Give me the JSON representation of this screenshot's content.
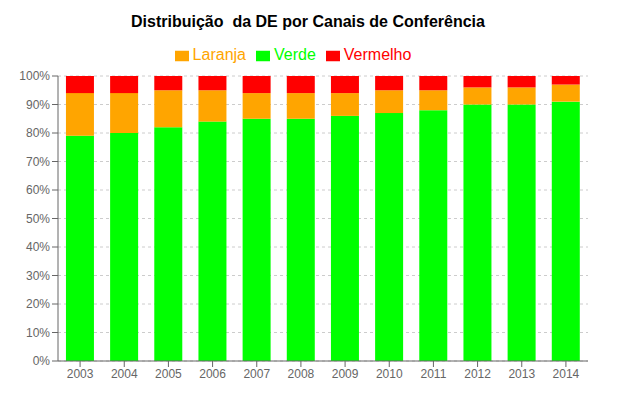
{
  "chart_data": {
    "type": "bar",
    "title": "Distribuição  da DE por Canais de Conferência",
    "categories": [
      "2003",
      "2004",
      "2005",
      "2006",
      "2007",
      "2008",
      "2009",
      "2010",
      "2011",
      "2012",
      "2013",
      "2014"
    ],
    "series": [
      {
        "name": "Verde",
        "color": "#00FF00",
        "values": [
          79,
          80,
          82,
          84,
          85,
          85,
          86,
          87,
          88,
          90,
          90,
          91
        ]
      },
      {
        "name": "Laranja",
        "color": "#FFA500",
        "values": [
          15,
          14,
          13,
          11,
          9,
          9,
          8,
          8,
          7,
          6,
          6,
          6
        ]
      },
      {
        "name": "Vermelho",
        "color": "#FF0000",
        "values": [
          6,
          6,
          5,
          5,
          6,
          6,
          6,
          5,
          5,
          4,
          4,
          3
        ]
      }
    ],
    "stacked": true,
    "ylim": [
      0,
      100
    ],
    "yticks": [
      {
        "value": 0,
        "label": "0%"
      },
      {
        "value": 10,
        "label": "10%"
      },
      {
        "value": 20,
        "label": "20%"
      },
      {
        "value": 30,
        "label": "30%"
      },
      {
        "value": 40,
        "label": "40%"
      },
      {
        "value": 50,
        "label": "50%"
      },
      {
        "value": 60,
        "label": "60%"
      },
      {
        "value": 70,
        "label": "70%"
      },
      {
        "value": 80,
        "label": "80%"
      },
      {
        "value": 90,
        "label": "90%"
      },
      {
        "value": 100,
        "label": "100%"
      }
    ],
    "grid": true,
    "legend": "top"
  }
}
